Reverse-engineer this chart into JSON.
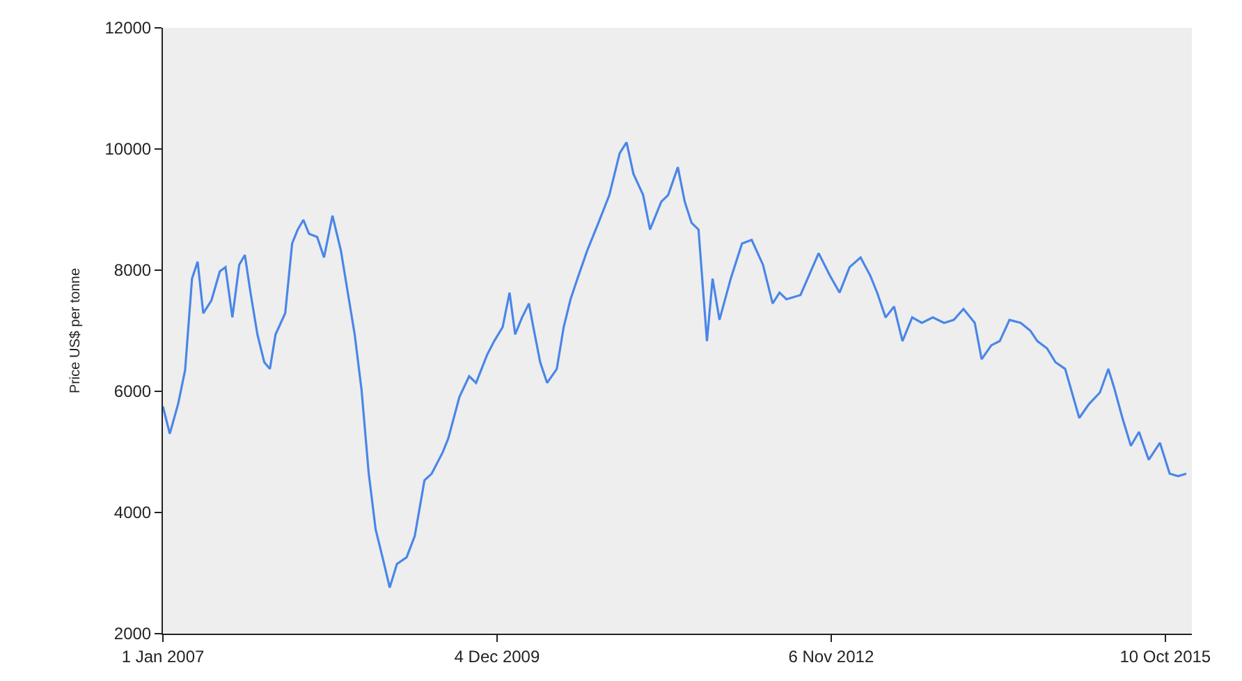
{
  "chart_data": {
    "type": "line",
    "ylabel": "Price US$ per tonne",
    "grid": false,
    "legend": false,
    "marker": "none",
    "line_style": "solid",
    "xlim": [
      "2007-01-01",
      "2016-01-03"
    ],
    "xticks": [
      {
        "value": "2007-01-01",
        "label": "1 Jan 2007"
      },
      {
        "value": "2009-12-04",
        "label": "4 Dec 2009"
      },
      {
        "value": "2012-11-06",
        "label": "6 Nov 2012"
      },
      {
        "value": "2015-10-10",
        "label": "10 Oct 2015"
      }
    ],
    "ylim": [
      2000,
      12000
    ],
    "yticks": [
      2000,
      4000,
      6000,
      8000,
      10000,
      12000
    ],
    "x": [
      "2007-01-01",
      "2007-01-23",
      "2007-02-19",
      "2007-03-13",
      "2007-04-04",
      "2007-04-22",
      "2007-05-10",
      "2007-06-05",
      "2007-07-02",
      "2007-07-20",
      "2007-08-11",
      "2007-09-02",
      "2007-09-20",
      "2007-10-08",
      "2007-10-30",
      "2007-11-21",
      "2007-12-09",
      "2007-12-27",
      "2008-01-27",
      "2008-02-18",
      "2008-03-07",
      "2008-03-25",
      "2008-04-12",
      "2008-05-08",
      "2008-05-30",
      "2008-06-26",
      "2008-07-23",
      "2008-08-14",
      "2008-09-05",
      "2008-09-27",
      "2008-10-20",
      "2008-11-11",
      "2008-12-03",
      "2008-12-26",
      "2009-01-18",
      "2009-02-18",
      "2009-03-16",
      "2009-04-16",
      "2009-05-09",
      "2009-06-13",
      "2009-07-01",
      "2009-08-06",
      "2009-09-06",
      "2009-09-28",
      "2009-11-02",
      "2009-11-25",
      "2009-12-22",
      "2010-01-13",
      "2010-01-31",
      "2010-02-22",
      "2010-03-16",
      "2010-03-30",
      "2010-04-21",
      "2010-05-13",
      "2010-06-13",
      "2010-07-05",
      "2010-07-27",
      "2010-08-18",
      "2010-09-18",
      "2010-10-24",
      "2010-11-28",
      "2010-12-31",
      "2011-01-22",
      "2011-02-13",
      "2011-03-16",
      "2011-04-07",
      "2011-05-13",
      "2011-06-04",
      "2011-07-05",
      "2011-07-27",
      "2011-08-18",
      "2011-09-09",
      "2011-10-06",
      "2011-10-24",
      "2011-11-15",
      "2011-12-21",
      "2012-01-26",
      "2012-02-26",
      "2012-04-02",
      "2012-05-03",
      "2012-05-25",
      "2012-06-16",
      "2012-07-31",
      "2012-09-27",
      "2012-11-02",
      "2012-12-03",
      "2013-01-04",
      "2013-02-08",
      "2013-03-11",
      "2013-04-02",
      "2013-04-29",
      "2013-05-26",
      "2013-06-22",
      "2013-07-23",
      "2013-08-23",
      "2013-09-27",
      "2013-11-02",
      "2013-12-03",
      "2014-01-03",
      "2014-02-08",
      "2014-03-02",
      "2014-04-02",
      "2014-04-29",
      "2014-05-30",
      "2014-07-05",
      "2014-08-05",
      "2014-08-27",
      "2014-09-27",
      "2014-10-24",
      "2014-11-24",
      "2015-01-08",
      "2015-02-08",
      "2015-03-15",
      "2015-04-11",
      "2015-04-29",
      "2015-05-26",
      "2015-06-22",
      "2015-07-18",
      "2015-08-18",
      "2015-09-23",
      "2015-10-24",
      "2015-11-20",
      "2015-12-16"
    ],
    "series": [
      {
        "color": "#4a86e8",
        "values": [
          5750,
          5300,
          5800,
          6350,
          7860,
          8140,
          7290,
          7500,
          7980,
          8050,
          7220,
          8090,
          8250,
          7630,
          6940,
          6480,
          6370,
          6940,
          7290,
          8440,
          8670,
          8830,
          8600,
          8550,
          8210,
          8900,
          8320,
          7630,
          6940,
          6020,
          4640,
          3720,
          3260,
          2760,
          3150,
          3260,
          3610,
          4530,
          4640,
          4990,
          5220,
          5910,
          6250,
          6140,
          6600,
          6830,
          7060,
          7630,
          6940,
          7220,
          7450,
          7060,
          6480,
          6140,
          6370,
          7060,
          7520,
          7860,
          8320,
          8780,
          9240,
          9930,
          10110,
          9590,
          9240,
          8670,
          9130,
          9240,
          9700,
          9130,
          8780,
          8670,
          6830,
          7860,
          7180,
          7860,
          8440,
          8500,
          8090,
          7450,
          7630,
          7520,
          7590,
          8280,
          7910,
          7630,
          8050,
          8210,
          7910,
          7630,
          7220,
          7400,
          6830,
          7220,
          7130,
          7220,
          7130,
          7180,
          7360,
          7130,
          6530,
          6760,
          6830,
          7180,
          7130,
          7000,
          6830,
          6710,
          6480,
          6370,
          5560,
          5790,
          5980,
          6370,
          6070,
          5560,
          5100,
          5330,
          4870,
          5150,
          4640,
          4600,
          4640
        ]
      }
    ]
  }
}
